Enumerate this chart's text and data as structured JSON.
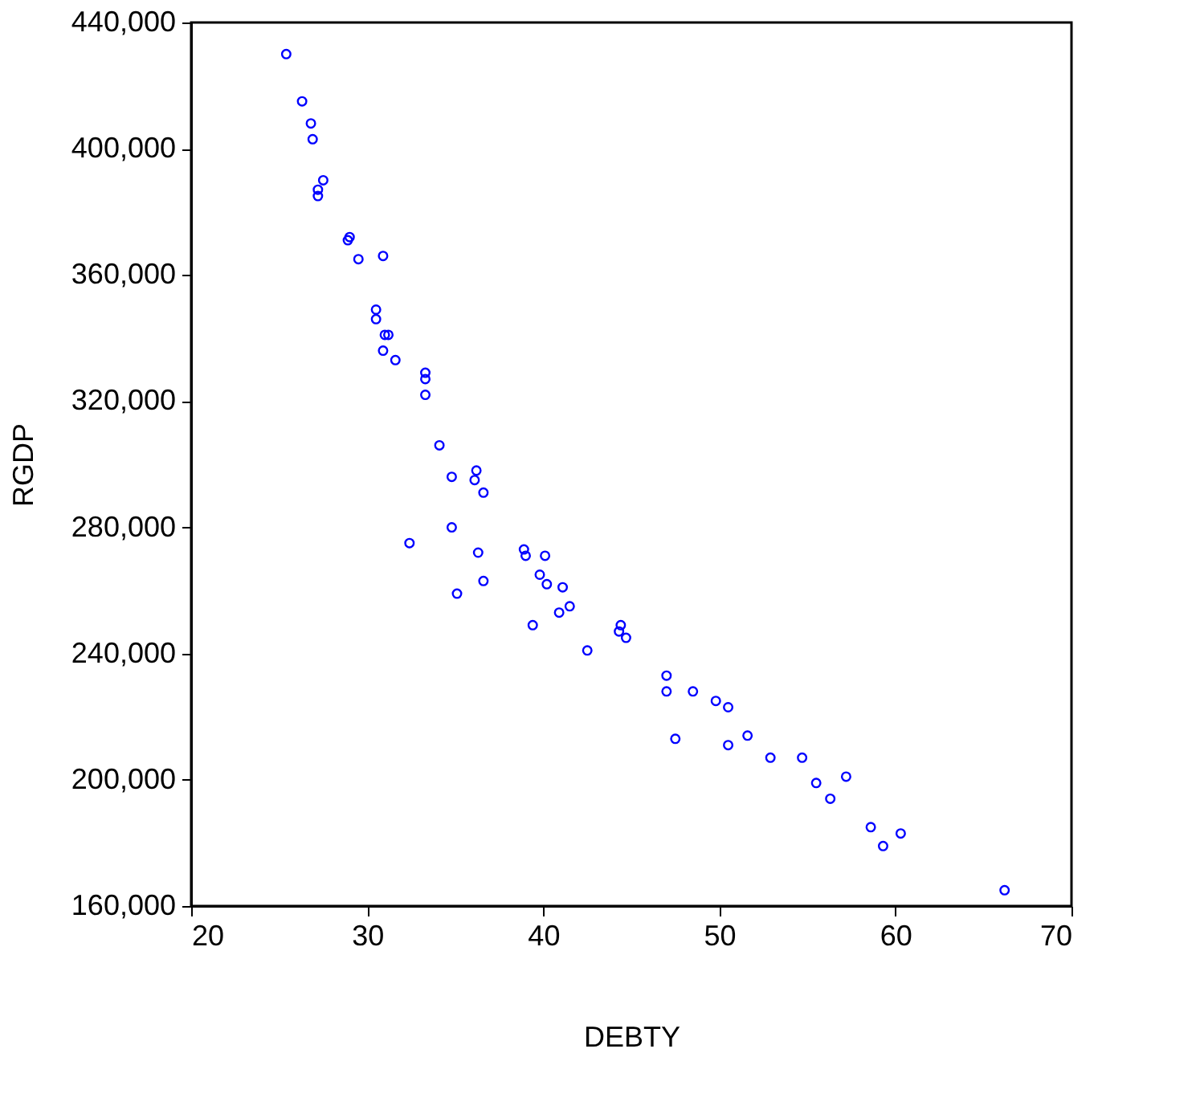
{
  "chart_data": {
    "type": "scatter",
    "xlabel": "DEBTY",
    "ylabel": "RGDP",
    "xlim": [
      20,
      70
    ],
    "xticks": [
      20,
      30,
      40,
      50,
      60,
      70
    ],
    "ylim": [
      160000,
      440000
    ],
    "yticks": [
      {
        "value": 160000,
        "label": "160,000"
      },
      {
        "value": 200000,
        "label": "200,000"
      },
      {
        "value": 240000,
        "label": "240,000"
      },
      {
        "value": 280000,
        "label": "280,000"
      },
      {
        "value": 320000,
        "label": "320,000"
      },
      {
        "value": 360000,
        "label": "360,000"
      },
      {
        "value": 400000,
        "label": "400,000"
      },
      {
        "value": 440000,
        "label": "440,000"
      }
    ],
    "grid": false,
    "marker": "circle",
    "series": [
      {
        "color": "#0000ff",
        "x": [
          25.4,
          26.3,
          26.8,
          26.9,
          27.5,
          27.2,
          27.2,
          29.0,
          28.9,
          29.5,
          30.9,
          30.5,
          30.5,
          31.0,
          31.2,
          30.9,
          31.6,
          33.3,
          33.3,
          33.3,
          34.1,
          34.8,
          36.2,
          36.1,
          36.6,
          34.8,
          32.4,
          36.3,
          38.9,
          39.0,
          40.1,
          39.8,
          40.2,
          41.1,
          36.6,
          35.1,
          41.5,
          40.9,
          39.4,
          44.4,
          44.3,
          44.7,
          42.5,
          47.0,
          47.0,
          48.5,
          49.8,
          50.5,
          47.5,
          50.5,
          51.6,
          52.9,
          54.7,
          55.5,
          57.2,
          56.3,
          58.6,
          60.3,
          59.3,
          66.2
        ],
        "values": [
          430000,
          415000,
          408000,
          403000,
          390000,
          387000,
          385000,
          372000,
          371000,
          365000,
          366000,
          349000,
          346000,
          341000,
          341000,
          336000,
          333000,
          329000,
          327000,
          322000,
          306000,
          296000,
          298000,
          295000,
          291000,
          280000,
          275000,
          272000,
          273000,
          271000,
          271000,
          265000,
          262000,
          261000,
          263000,
          259000,
          255000,
          253000,
          249000,
          249000,
          247000,
          245000,
          241000,
          233000,
          228000,
          228000,
          225000,
          223000,
          213000,
          211000,
          214000,
          207000,
          207000,
          199000,
          201000,
          194000,
          185000,
          183000,
          179000,
          165000
        ]
      }
    ]
  }
}
